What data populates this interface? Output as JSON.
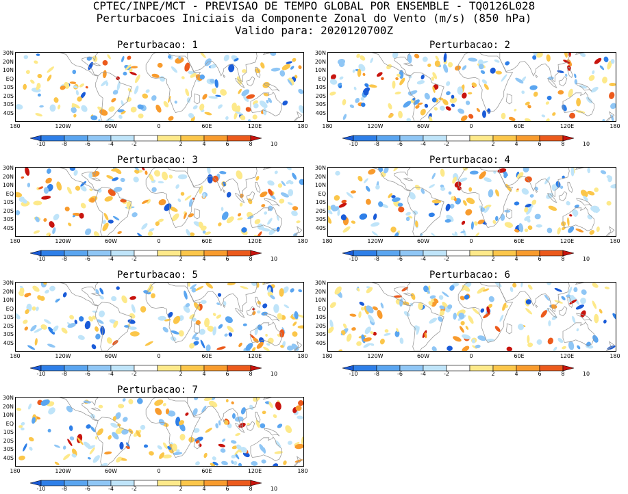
{
  "title": {
    "line1": "CPTEC/INPE/MCT - PREVISAO DE TEMPO GLOBAL POR ENSEMBLE - TQ0126L028",
    "line2": "Perturbacoes Iniciais da Componente Zonal do Vento (m/s) (850 hPa)",
    "line3": "Valido para: 2020120700Z"
  },
  "panels": [
    {
      "title": "Perturbacao: 1"
    },
    {
      "title": "Perturbacao: 2"
    },
    {
      "title": "Perturbacao: 3"
    },
    {
      "title": "Perturbacao: 4"
    },
    {
      "title": "Perturbacao: 5"
    },
    {
      "title": "Perturbacao: 6"
    },
    {
      "title": "Perturbacao: 7"
    }
  ],
  "lat_labels": [
    "30N",
    "20N",
    "10N",
    "EQ",
    "10S",
    "20S",
    "30S",
    "40S"
  ],
  "lon_labels": [
    "180",
    "120W",
    "60W",
    "0",
    "60E",
    "120E",
    "180"
  ],
  "colorbar": {
    "labels": [
      "-10",
      "-8",
      "-6",
      "-4",
      "-2",
      "2",
      "4",
      "6",
      "8",
      "10"
    ],
    "colors": [
      "#1a5bd8",
      "#2e7fe8",
      "#5aa5f0",
      "#8fc6f5",
      "#bfe4f9",
      "#ffffff",
      "#fde98a",
      "#fbc64a",
      "#f89b2d",
      "#ec5a1c",
      "#c8140e"
    ]
  }
}
